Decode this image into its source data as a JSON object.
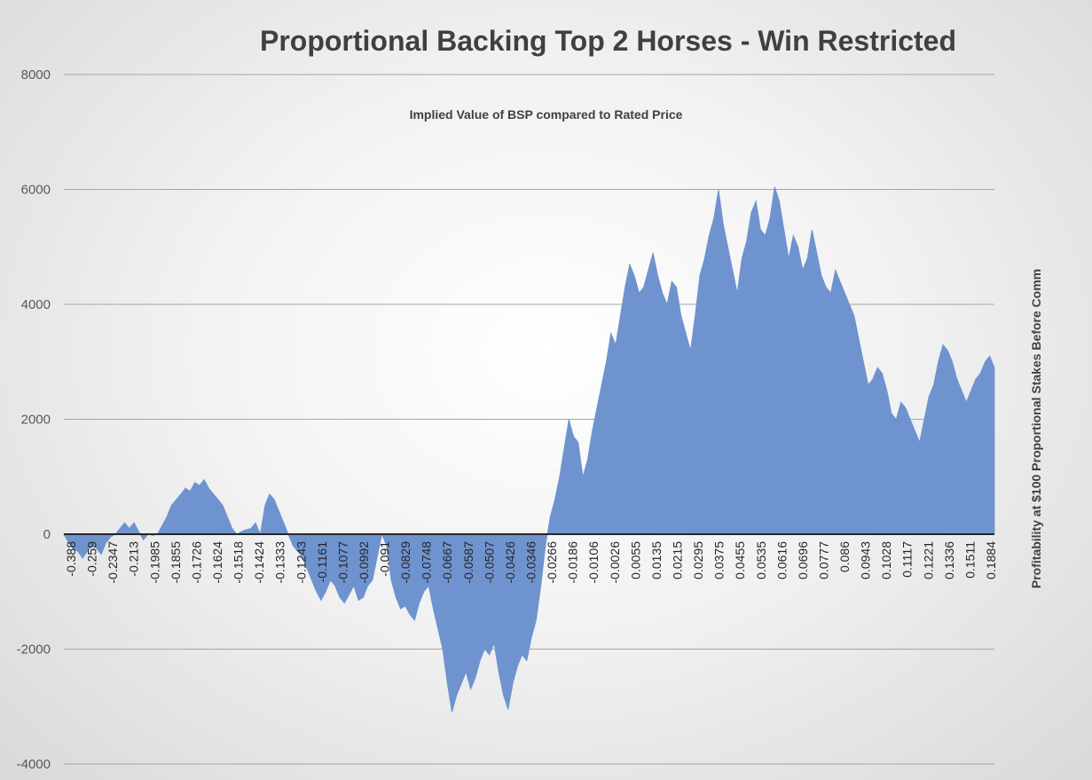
{
  "chart_data": {
    "type": "area",
    "title": "Proportional Backing Top 2 Horses - Win Restricted",
    "subtitle": "Implied Value of BSP compared to Rated Price",
    "xlabel": "",
    "ylabel": "Profitability at $100 Proportional Stakes Before Comm",
    "ylim": [
      -4000,
      8000
    ],
    "yticks": [
      -4000,
      -2000,
      0,
      2000,
      4000,
      6000,
      8000
    ],
    "grid": true,
    "fill_color": "#6f93cf",
    "x_tick_labels": [
      "-0.388",
      "-0.259",
      "-0.2347",
      "-0.213",
      "-0.1985",
      "-0.1855",
      "-0.1726",
      "-0.1624",
      "-0.1518",
      "-0.1424",
      "-0.1333",
      "-0.1243",
      "-0.1161",
      "-0.1077",
      "-0.0992",
      "-0.091",
      "-0.0829",
      "-0.0748",
      "-0.0667",
      "-0.0587",
      "-0.0507",
      "-0.0426",
      "-0.0346",
      "-0.0266",
      "-0.0186",
      "-0.0106",
      "-0.0026",
      "0.0055",
      "0.0135",
      "0.0215",
      "0.0295",
      "0.0375",
      "0.0455",
      "0.0535",
      "0.0616",
      "0.0696",
      "0.0777",
      "0.086",
      "0.0943",
      "0.1028",
      "0.1117",
      "0.1221",
      "0.1336",
      "0.1511",
      "0.1884"
    ],
    "series": [
      {
        "values": [
          0,
          -150,
          -250,
          -300,
          -420,
          -300,
          -200,
          -250,
          -350,
          -150,
          -50,
          0,
          100,
          200,
          100,
          200,
          50,
          -100,
          0,
          -20,
          0,
          150,
          300,
          500,
          600,
          700,
          800,
          750,
          900,
          850,
          950,
          800,
          700,
          600,
          500,
          300,
          100,
          0,
          50,
          80,
          100,
          200,
          0,
          500,
          700,
          600,
          400,
          200,
          0,
          -200,
          -300,
          -400,
          -600,
          -800,
          -1000,
          -1150,
          -1000,
          -800,
          -900,
          -1100,
          -1200,
          -1050,
          -900,
          -1150,
          -1100,
          -900,
          -800,
          -400,
          0,
          -200,
          -800,
          -1100,
          -1300,
          -1250,
          -1400,
          -1500,
          -1200,
          -1000,
          -900,
          -1300,
          -1650,
          -2000,
          -2600,
          -3100,
          -2800,
          -2600,
          -2400,
          -2700,
          -2500,
          -2200,
          -2000,
          -2100,
          -1900,
          -2400,
          -2800,
          -3050,
          -2600,
          -2300,
          -2100,
          -2200,
          -1800,
          -1500,
          -900,
          -200,
          300,
          600,
          1000,
          1500,
          2000,
          1700,
          1600,
          1000,
          1300,
          1800,
          2200,
          2600,
          3000,
          3500,
          3300,
          3800,
          4300,
          4700,
          4500,
          4200,
          4300,
          4600,
          4900,
          4500,
          4200,
          4000,
          4400,
          4300,
          3800,
          3500,
          3200,
          3800,
          4500,
          4800,
          5200,
          5500,
          6000,
          5400,
          5000,
          4600,
          4200,
          4800,
          5100,
          5600,
          5800,
          5300,
          5200,
          5500,
          6050,
          5800,
          5300,
          4800,
          5200,
          5000,
          4600,
          4800,
          5300,
          4900,
          4500,
          4300,
          4200,
          4600,
          4400,
          4200,
          4000,
          3800,
          3400,
          3000,
          2600,
          2700,
          2900,
          2800,
          2500,
          2100,
          2000,
          2300,
          2200,
          2000,
          1800,
          1600,
          2000,
          2400,
          2600,
          3000,
          3300,
          3200,
          3000,
          2700,
          2500,
          2300,
          2500,
          2700,
          2800,
          3000,
          3100,
          2900
        ]
      }
    ]
  }
}
